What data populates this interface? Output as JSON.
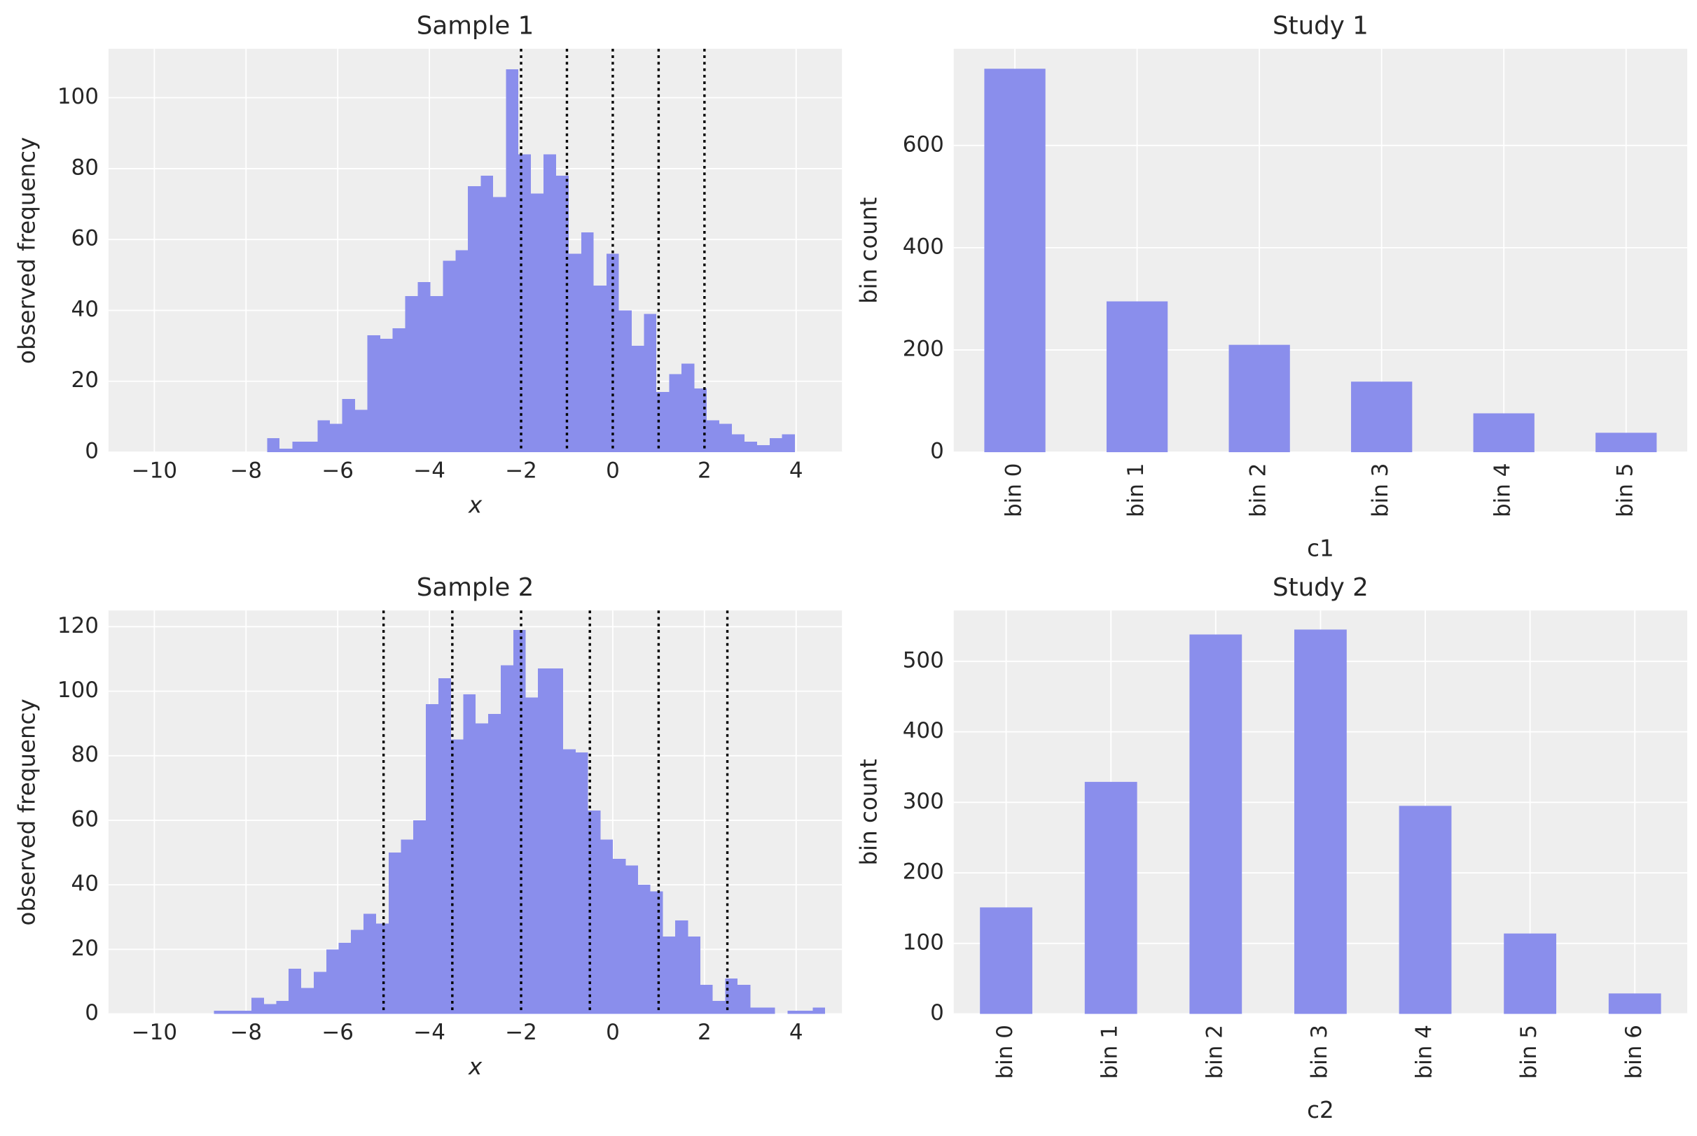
{
  "chart_data": [
    {
      "type": "histogram",
      "title": "Sample 1",
      "xlabel": "x",
      "ylabel": "observed frequency",
      "color": "#8a8eec",
      "grid": true,
      "bins": [
        -7.54,
        -7.27,
        -6.99,
        -6.72,
        -6.44,
        -6.17,
        -5.9,
        -5.62,
        -5.35,
        -5.07,
        -4.8,
        -4.53,
        -4.25,
        -3.98,
        -3.7,
        -3.43,
        -3.16,
        -2.88,
        -2.61,
        -2.33,
        -2.06,
        -1.79,
        -1.51,
        -1.24,
        -0.96,
        -0.69,
        -0.42,
        -0.14,
        0.13,
        0.41,
        0.68,
        0.95,
        1.23,
        1.5,
        1.78,
        2.05,
        2.32,
        2.6,
        2.87,
        3.15,
        3.42,
        3.69,
        3.97
      ],
      "counts": [
        4,
        1,
        3,
        3,
        9,
        8,
        15,
        12,
        33,
        32,
        35,
        44,
        48,
        44,
        54,
        57,
        75,
        78,
        72,
        108,
        84,
        73,
        84,
        78,
        56,
        62,
        47,
        56,
        40,
        30,
        39,
        17,
        22,
        25,
        18,
        9,
        8,
        5,
        3,
        2,
        4,
        5
      ],
      "vlines": [
        -2,
        -1,
        0,
        1,
        2
      ],
      "xlim": [
        -11,
        5
      ],
      "ylim": [
        0,
        113.8
      ],
      "xticks": [
        {
          "value": -10,
          "label": "−10"
        },
        {
          "value": -8,
          "label": "−8"
        },
        {
          "value": -6,
          "label": "−6"
        },
        {
          "value": -4,
          "label": "−4"
        },
        {
          "value": -2,
          "label": "−2"
        },
        0,
        2,
        4
      ],
      "yticks": [
        0,
        20,
        40,
        60,
        80,
        100
      ]
    },
    {
      "type": "bar",
      "title": "Study 1",
      "xlabel": "c1",
      "ylabel": "bin count",
      "color": "#8a8eec",
      "grid": true,
      "categories": [
        "bin 0",
        "bin 1",
        "bin 2",
        "bin 3",
        "bin 4",
        "bin 5"
      ],
      "values": [
        750,
        295,
        210,
        138,
        76,
        38
      ],
      "ylim": [
        0,
        789
      ],
      "yticks": [
        0,
        200,
        400,
        600
      ]
    },
    {
      "type": "histogram",
      "title": "Sample 2",
      "xlabel": "x",
      "ylabel": "observed frequency",
      "color": "#8a8eec",
      "grid": true,
      "bins": [
        -8.7,
        -8.43,
        -8.16,
        -7.88,
        -7.61,
        -7.34,
        -7.07,
        -6.8,
        -6.52,
        -6.25,
        -5.98,
        -5.71,
        -5.44,
        -5.16,
        -4.89,
        -4.62,
        -4.35,
        -4.08,
        -3.8,
        -3.53,
        -3.26,
        -2.99,
        -2.72,
        -2.44,
        -2.17,
        -1.9,
        -1.63,
        -1.36,
        -1.08,
        -0.81,
        -0.54,
        -0.27,
        0,
        0.28,
        0.55,
        0.82,
        1.09,
        1.36,
        1.64,
        1.91,
        2.18,
        2.45,
        2.72,
        3.0,
        3.27,
        3.54,
        3.81,
        4.08,
        4.36,
        4.63
      ],
      "counts": [
        1,
        1,
        1,
        5,
        3,
        4,
        14,
        8,
        13,
        20,
        22,
        26,
        31,
        28,
        50,
        54,
        60,
        96,
        104,
        85,
        99,
        90,
        93,
        108,
        119,
        98,
        107,
        107,
        82,
        81,
        63,
        54,
        48,
        46,
        40,
        38,
        24,
        29,
        24,
        9,
        4,
        11,
        9,
        2,
        2,
        0,
        1,
        1,
        2
      ],
      "vlines": [
        -5,
        -3.5,
        -2,
        -0.5,
        1,
        2.5
      ],
      "xlim": [
        -11,
        5
      ],
      "ylim": [
        0,
        125
      ],
      "xticks": [
        {
          "value": -10,
          "label": "−10"
        },
        {
          "value": -8,
          "label": "−8"
        },
        {
          "value": -6,
          "label": "−6"
        },
        {
          "value": -4,
          "label": "−4"
        },
        {
          "value": -2,
          "label": "−2"
        },
        0,
        2,
        4
      ],
      "yticks": [
        0,
        20,
        40,
        60,
        80,
        100,
        120
      ]
    },
    {
      "type": "bar",
      "title": "Study 2",
      "xlabel": "c2",
      "ylabel": "bin count",
      "color": "#8a8eec",
      "grid": true,
      "categories": [
        "bin 0",
        "bin 1",
        "bin 2",
        "bin 3",
        "bin 4",
        "bin 5",
        "bin 6"
      ],
      "values": [
        151,
        329,
        538,
        545,
        295,
        114,
        29
      ],
      "ylim": [
        0,
        572
      ],
      "yticks": [
        0,
        100,
        200,
        300,
        400,
        500
      ]
    }
  ]
}
